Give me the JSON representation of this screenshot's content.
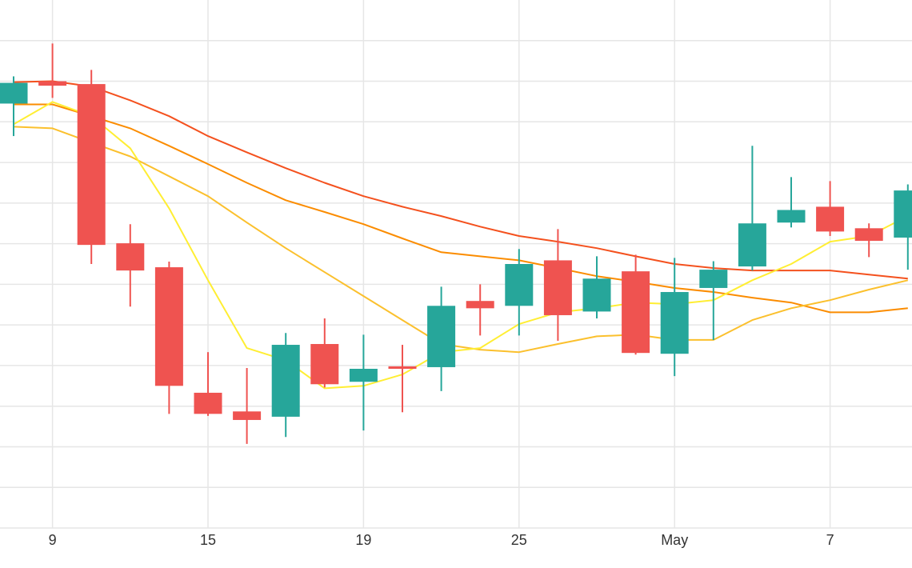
{
  "chart_data": {
    "type": "candlestick",
    "categories": [
      null,
      "9",
      null,
      null,
      null,
      "15",
      null,
      null,
      null,
      "19",
      null,
      null,
      null,
      "25",
      null,
      null,
      null,
      "May",
      null,
      null,
      null,
      "7",
      null,
      null
    ],
    "open": [
      10.45,
      11.0,
      10.93,
      7.01,
      6.42,
      3.33,
      2.87,
      2.74,
      4.53,
      3.6,
      3.98,
      3.96,
      5.59,
      5.47,
      6.59,
      5.33,
      6.32,
      4.29,
      5.91,
      6.44,
      7.52,
      7.91,
      7.38,
      7.15
    ],
    "high": [
      11.12,
      11.93,
      11.28,
      7.48,
      6.56,
      4.33,
      3.94,
      4.8,
      5.16,
      4.76,
      4.51,
      5.94,
      6.0,
      6.87,
      7.36,
      6.69,
      6.73,
      6.65,
      6.57,
      9.41,
      8.64,
      8.54,
      7.5,
      8.46
    ],
    "low": [
      9.65,
      10.59,
      6.5,
      5.45,
      2.81,
      2.76,
      2.07,
      2.24,
      3.46,
      2.4,
      2.85,
      3.37,
      4.74,
      4.74,
      4.61,
      5.16,
      4.27,
      3.74,
      4.63,
      6.34,
      7.4,
      7.19,
      6.67,
      6.36
    ],
    "close": [
      10.96,
      10.89,
      6.97,
      6.34,
      3.5,
      2.81,
      2.66,
      4.51,
      3.54,
      3.92,
      3.92,
      5.47,
      5.41,
      6.5,
      5.24,
      6.14,
      4.31,
      5.81,
      6.36,
      7.5,
      7.83,
      7.3,
      7.07,
      8.31
    ],
    "up_color": "#26a69a",
    "down_color": "#ef5350",
    "series": [
      {
        "color": "#f4511e",
        "values": [
          10.98,
          11.0,
          10.87,
          10.53,
          10.14,
          9.65,
          9.25,
          8.86,
          8.5,
          8.17,
          7.91,
          7.68,
          7.42,
          7.19,
          7.05,
          6.89,
          6.69,
          6.5,
          6.4,
          6.34,
          6.34,
          6.34,
          6.24,
          6.14
        ]
      },
      {
        "color": "#fb8c00",
        "values": [
          10.43,
          10.43,
          10.14,
          9.84,
          9.41,
          8.96,
          8.5,
          8.07,
          7.78,
          7.48,
          7.13,
          6.79,
          6.69,
          6.59,
          6.4,
          6.2,
          6.06,
          5.91,
          5.81,
          5.67,
          5.55,
          5.31,
          5.31,
          5.41
        ]
      },
      {
        "color": "#fbc02d",
        "values": [
          9.88,
          9.84,
          9.49,
          9.15,
          8.66,
          8.17,
          7.52,
          6.89,
          6.3,
          5.71,
          5.12,
          4.53,
          4.39,
          4.33,
          4.53,
          4.72,
          4.76,
          4.63,
          4.63,
          5.12,
          5.41,
          5.61,
          5.87,
          6.1
        ]
      },
      {
        "color": "#ffee33",
        "values": [
          9.94,
          10.49,
          10.14,
          9.35,
          7.87,
          6.1,
          4.43,
          4.13,
          3.44,
          3.5,
          3.78,
          4.33,
          4.43,
          5.02,
          5.31,
          5.41,
          5.55,
          5.51,
          5.61,
          6.1,
          6.5,
          7.05,
          7.19,
          7.68
        ]
      }
    ],
    "ylim": [
      0,
      13
    ],
    "yticks": [
      0,
      1,
      2,
      3,
      4,
      5,
      6,
      7,
      8,
      9,
      10,
      11,
      12
    ],
    "grid": true,
    "show_ytick_labels": false
  }
}
